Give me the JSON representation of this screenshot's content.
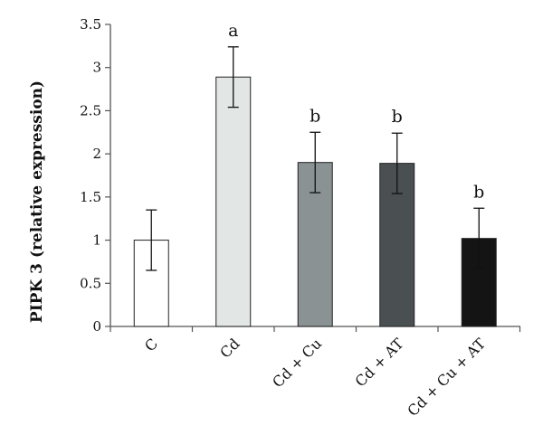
{
  "chart_data": {
    "type": "bar",
    "title": "",
    "xlabel": "",
    "ylabel": "PIPK 3 (relative expression)",
    "ylim": [
      0,
      3.5
    ],
    "yticks": [
      0,
      0.5,
      1,
      1.5,
      2,
      2.5,
      3,
      3.5
    ],
    "ytick_labels": [
      "0",
      "0.5",
      "1",
      "1.5",
      "2",
      "2.5",
      "3",
      "3.5"
    ],
    "grid": false,
    "categories": [
      "C",
      "Cd",
      "Cd + Cu",
      "Cd + AT",
      "Cd + Cu + AT"
    ],
    "values": [
      1.0,
      2.89,
      1.9,
      1.89,
      1.02
    ],
    "errors": [
      0.35,
      0.35,
      0.35,
      0.35,
      0.35
    ],
    "significance": [
      "",
      "a",
      "b",
      "b",
      "b"
    ],
    "colors": [
      "#ffffff",
      "#e2e6e4",
      "#8a9293",
      "#4a4f51",
      "#141414"
    ]
  }
}
